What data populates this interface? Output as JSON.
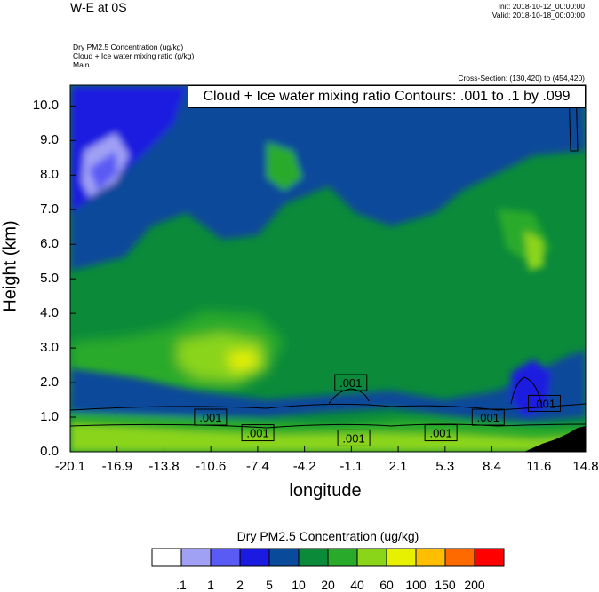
{
  "header": {
    "title": "W-E at 0S",
    "init": "Init: 2018-10-12_00:00:00",
    "valid": "Valid: 2018-10-18_00:00:00",
    "field1": "Dry PM2.5 Concentration   (ug/kg)",
    "field2": "Cloud + Ice water mixing ratio   (g/kg)",
    "field3": "Main",
    "cross_section": "Cross-Section: (130,420) to (454,420)"
  },
  "chart_data": {
    "type": "heatmap",
    "title": "W-E at 0S",
    "xlabel": "longitude",
    "ylabel": "Height (km)",
    "xlim": [
      -20.1,
      14.8
    ],
    "ylim": [
      0.0,
      10.6
    ],
    "x_ticks": [
      "-20.1",
      "-16.9",
      "-13.8",
      "-10.6",
      "-7.4",
      "-4.2",
      "-1.1",
      "2.1",
      "5.3",
      "8.4",
      "11.6",
      "14.8"
    ],
    "y_ticks": [
      "0.0",
      "1.0",
      "2.0",
      "3.0",
      "4.0",
      "5.0",
      "6.0",
      "7.0",
      "8.0",
      "9.0",
      "10.0"
    ],
    "contour_info": "Cloud + Ice water mixing ratio Contours: .001 to .1 by .099",
    "contour_labels": [
      {
        "label": ".001",
        "x": -1.1,
        "y": 2.0
      },
      {
        "label": ".001",
        "x": -10.6,
        "y": 1.0
      },
      {
        "label": ".001",
        "x": -7.4,
        "y": 0.55
      },
      {
        "label": ".001",
        "x": -0.9,
        "y": 0.4
      },
      {
        "label": ".001",
        "x": 5.0,
        "y": 0.55
      },
      {
        "label": ".001",
        "x": 8.2,
        "y": 1.0
      },
      {
        "label": ".001",
        "x": 12.0,
        "y": 1.4
      }
    ],
    "colorbar": {
      "title": "Dry PM2.5 Concentration  (ug/kg)",
      "levels": [
        ".1",
        "1",
        "2",
        "5",
        "10",
        "20",
        "40",
        "60",
        "100",
        "150",
        "200"
      ],
      "colors": [
        "#ffffff",
        "#a0a0f5",
        "#5a5af5",
        "#1a1ae0",
        "#0a4a9a",
        "#0b8a3a",
        "#2aaa2a",
        "#8ad41a",
        "#e6f000",
        "#ffbf00",
        "#ff6a00",
        "#ff0000"
      ]
    }
  }
}
